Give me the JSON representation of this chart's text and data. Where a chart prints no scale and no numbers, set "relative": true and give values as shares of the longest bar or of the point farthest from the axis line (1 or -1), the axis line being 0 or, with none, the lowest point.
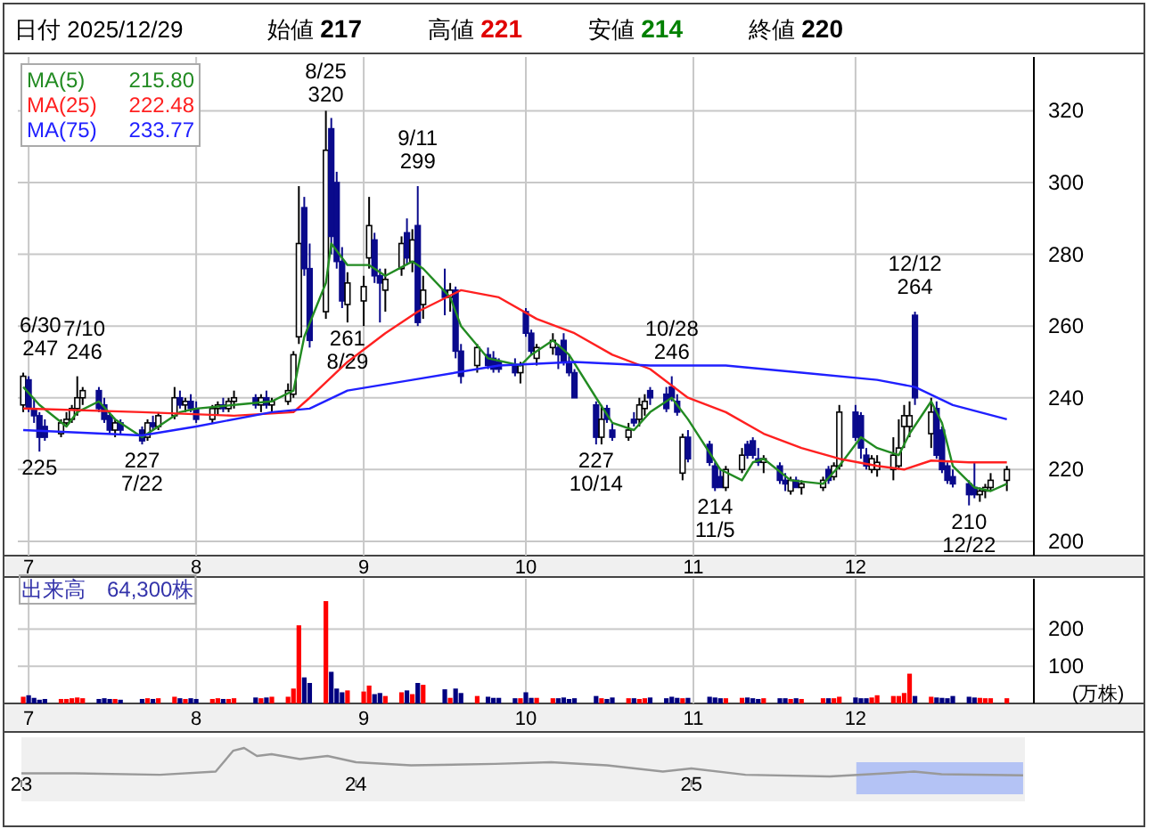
{
  "chart_data": [
    {
      "type": "candlestick",
      "x": [
        "2025-06-30",
        "2025-07-01",
        "2025-07-02",
        "2025-07-03",
        "2025-07-04",
        "2025-07-07",
        "2025-07-08",
        "2025-07-09",
        "2025-07-10",
        "2025-07-11",
        "2025-07-14",
        "2025-07-15",
        "2025-07-16",
        "2025-07-17",
        "2025-07-18",
        "2025-07-22",
        "2025-07-23",
        "2025-07-24",
        "2025-07-25",
        "2025-07-28",
        "2025-07-29",
        "2025-07-30",
        "2025-07-31",
        "2025-08-01",
        "2025-08-04",
        "2025-08-05",
        "2025-08-06",
        "2025-08-07",
        "2025-08-08",
        "2025-08-12",
        "2025-08-13",
        "2025-08-14",
        "2025-08-15",
        "2025-08-18",
        "2025-08-19",
        "2025-08-20",
        "2025-08-21",
        "2025-08-22",
        "2025-08-25",
        "2025-08-26",
        "2025-08-27",
        "2025-08-28",
        "2025-08-29",
        "2025-09-01",
        "2025-09-02",
        "2025-09-03",
        "2025-09-04",
        "2025-09-05",
        "2025-09-08",
        "2025-09-09",
        "2025-09-10",
        "2025-09-11",
        "2025-09-12",
        "2025-09-16",
        "2025-09-17",
        "2025-09-18",
        "2025-09-19",
        "2025-09-22",
        "2025-09-24",
        "2025-09-25",
        "2025-09-26",
        "2025-09-29",
        "2025-09-30",
        "2025-10-01",
        "2025-10-02",
        "2025-10-03",
        "2025-10-06",
        "2025-10-07",
        "2025-10-08",
        "2025-10-09",
        "2025-10-10",
        "2025-10-14",
        "2025-10-15",
        "2025-10-16",
        "2025-10-17",
        "2025-10-20",
        "2025-10-21",
        "2025-10-22",
        "2025-10-23",
        "2025-10-24",
        "2025-10-27",
        "2025-10-28",
        "2025-10-29",
        "2025-10-30",
        "2025-10-31",
        "2025-11-04",
        "2025-11-05",
        "2025-11-06",
        "2025-11-07",
        "2025-11-10",
        "2025-11-11",
        "2025-11-12",
        "2025-11-13",
        "2025-11-14",
        "2025-11-17",
        "2025-11-18",
        "2025-11-19",
        "2025-11-20",
        "2025-11-21",
        "2025-11-25",
        "2025-11-26",
        "2025-11-27",
        "2025-11-28",
        "2025-12-01",
        "2025-12-02",
        "2025-12-03",
        "2025-12-04",
        "2025-12-05",
        "2025-12-08",
        "2025-12-09",
        "2025-12-10",
        "2025-12-11",
        "2025-12-12",
        "2025-12-15",
        "2025-12-16",
        "2025-12-17",
        "2025-12-18",
        "2025-12-19",
        "2025-12-22",
        "2025-12-23",
        "2025-12-24",
        "2025-12-25",
        "2025-12-26",
        "2025-12-29"
      ],
      "ohlc": [
        [
          238,
          247,
          236,
          246
        ],
        [
          245,
          246,
          236,
          237
        ],
        [
          237,
          240,
          233,
          235
        ],
        [
          235,
          236,
          225,
          229
        ],
        [
          232,
          234,
          228,
          229
        ],
        [
          230,
          234,
          229,
          233
        ],
        [
          233,
          236,
          232,
          234
        ],
        [
          234,
          238,
          233,
          237
        ],
        [
          237,
          246,
          235,
          240
        ],
        [
          240,
          243,
          238,
          242
        ],
        [
          242,
          243,
          236,
          237
        ],
        [
          238,
          240,
          233,
          234
        ],
        [
          235,
          236,
          230,
          231
        ],
        [
          231,
          234,
          229,
          233
        ],
        [
          233,
          234,
          230,
          231
        ],
        [
          231,
          232,
          227,
          228
        ],
        [
          229,
          234,
          228,
          233
        ],
        [
          233,
          235,
          231,
          232
        ],
        [
          232,
          236,
          231,
          235
        ],
        [
          235,
          243,
          234,
          240
        ],
        [
          240,
          242,
          237,
          238
        ],
        [
          238,
          240,
          236,
          239
        ],
        [
          239,
          241,
          236,
          237
        ],
        [
          237,
          239,
          233,
          234
        ],
        [
          234,
          238,
          233,
          237
        ],
        [
          237,
          239,
          235,
          238
        ],
        [
          238,
          240,
          236,
          237
        ],
        [
          237,
          240,
          236,
          239
        ],
        [
          239,
          242,
          237,
          240
        ],
        [
          240,
          241,
          237,
          238
        ],
        [
          238,
          241,
          236,
          240
        ],
        [
          240,
          242,
          237,
          238
        ],
        [
          238,
          240,
          236,
          239
        ],
        [
          239,
          244,
          238,
          242
        ],
        [
          241,
          253,
          240,
          252
        ],
        [
          257,
          299,
          255,
          283
        ],
        [
          293,
          296,
          274,
          276
        ],
        [
          276,
          283,
          254,
          256
        ],
        [
          264,
          320,
          262,
          309
        ],
        [
          315,
          318,
          280,
          285
        ],
        [
          300,
          303,
          276,
          278
        ],
        [
          278,
          282,
          265,
          267
        ],
        [
          266,
          275,
          261,
          272
        ],
        [
          267,
          274,
          260,
          271
        ],
        [
          279,
          296,
          276,
          288
        ],
        [
          284,
          286,
          272,
          274
        ],
        [
          274,
          276,
          261,
          272
        ],
        [
          270,
          276,
          264,
          273
        ],
        [
          276,
          285,
          274,
          283
        ],
        [
          286,
          290,
          277,
          279
        ],
        [
          278,
          287,
          275,
          284
        ],
        [
          288,
          299,
          260,
          261
        ],
        [
          266,
          274,
          262,
          270
        ],
        [
          270,
          276,
          263,
          268
        ],
        [
          268,
          272,
          264,
          270
        ],
        [
          270,
          271,
          251,
          253
        ],
        [
          253,
          255,
          244,
          246
        ],
        [
          249,
          255,
          247,
          254
        ],
        [
          252,
          254,
          248,
          249
        ],
        [
          251,
          253,
          247,
          248
        ],
        [
          250,
          251,
          247,
          248
        ],
        [
          249,
          251,
          246,
          247
        ],
        [
          247,
          250,
          244,
          249
        ],
        [
          264,
          265,
          257,
          258
        ],
        [
          258,
          259,
          252,
          253
        ],
        [
          251,
          255,
          249,
          254
        ],
        [
          254,
          258,
          252,
          256
        ],
        [
          254,
          255,
          248,
          252
        ],
        [
          256,
          258,
          249,
          250
        ],
        [
          250,
          252,
          246,
          247
        ],
        [
          247,
          248,
          240,
          240
        ],
        [
          238,
          239,
          227,
          229
        ],
        [
          229,
          238,
          227,
          234
        ],
        [
          237,
          238,
          233,
          234
        ],
        [
          231,
          233,
          228,
          229
        ],
        [
          229,
          233,
          228,
          231
        ],
        [
          234,
          236,
          232,
          233
        ],
        [
          234,
          240,
          232,
          238
        ],
        [
          237,
          241,
          235,
          239
        ],
        [
          242,
          243,
          238,
          240
        ],
        [
          241,
          243,
          236,
          237
        ],
        [
          243,
          246,
          239,
          240
        ],
        [
          239,
          241,
          235,
          236
        ],
        [
          219,
          230,
          217,
          229
        ],
        [
          229,
          231,
          222,
          223
        ],
        [
          227,
          228,
          221,
          222
        ],
        [
          221,
          222,
          214,
          215
        ],
        [
          218,
          220,
          215,
          215
        ],
        [
          215,
          221,
          214,
          220
        ],
        [
          220,
          226,
          219,
          224
        ],
        [
          227,
          228,
          223,
          224
        ],
        [
          228,
          229,
          223,
          224
        ],
        [
          223,
          226,
          221,
          222
        ],
        [
          222,
          224,
          219,
          223
        ],
        [
          221,
          222,
          216,
          217
        ],
        [
          217,
          219,
          214,
          216
        ],
        [
          214,
          218,
          213,
          217
        ],
        [
          217,
          218,
          215,
          215
        ],
        [
          215,
          217,
          213,
          216
        ],
        [
          215,
          218,
          214,
          217
        ],
        [
          220,
          221,
          216,
          217
        ],
        [
          218,
          222,
          217,
          221
        ],
        [
          221,
          238,
          220,
          236
        ],
        [
          236,
          238,
          228,
          229
        ],
        [
          235,
          236,
          223,
          226
        ],
        [
          224,
          226,
          220,
          221
        ],
        [
          220,
          224,
          219,
          223
        ],
        [
          220,
          224,
          218,
          222
        ],
        [
          220,
          229,
          217,
          224
        ],
        [
          221,
          234,
          220,
          226
        ],
        [
          232,
          238,
          226,
          235
        ],
        [
          232,
          239,
          229,
          235
        ],
        [
          263,
          264,
          238,
          240
        ],
        [
          230,
          240,
          226,
          236
        ],
        [
          237,
          239,
          223,
          224
        ],
        [
          231,
          232,
          219,
          220
        ],
        [
          221,
          222,
          216,
          217
        ],
        [
          218,
          220,
          215,
          216
        ],
        [
          216,
          217,
          210,
          213
        ],
        [
          215,
          222,
          212,
          213
        ],
        [
          213,
          215,
          211,
          214
        ],
        [
          214,
          216,
          212,
          215
        ],
        [
          215,
          219,
          214,
          217
        ],
        [
          217,
          221,
          214,
          220
        ]
      ],
      "series": [
        {
          "name": "MA(5)",
          "type": "line",
          "color": "#228b22",
          "x": [
            "2025-06-30",
            "2025-07-03",
            "2025-07-08",
            "2025-07-10",
            "2025-07-14",
            "2025-07-17",
            "2025-07-22",
            "2025-07-25",
            "2025-07-29",
            "2025-08-01",
            "2025-08-08",
            "2025-08-15",
            "2025-08-19",
            "2025-08-21",
            "2025-08-25",
            "2025-08-26",
            "2025-08-29",
            "2025-09-02",
            "2025-09-05",
            "2025-09-10",
            "2025-09-12",
            "2025-09-17",
            "2025-09-19",
            "2025-09-24",
            "2025-09-30",
            "2025-10-02",
            "2025-10-06",
            "2025-10-09",
            "2025-10-14",
            "2025-10-17",
            "2025-10-21",
            "2025-10-24",
            "2025-10-28",
            "2025-10-31",
            "2025-11-06",
            "2025-11-10",
            "2025-11-12",
            "2025-11-14",
            "2025-11-19",
            "2025-11-25",
            "2025-11-28",
            "2025-12-02",
            "2025-12-05",
            "2025-12-09",
            "2025-12-11",
            "2025-12-15",
            "2025-12-17",
            "2025-12-19",
            "2025-12-23",
            "2025-12-26",
            "2025-12-29"
          ],
          "values": [
            243,
            238,
            232,
            236,
            239,
            234,
            229,
            232,
            236,
            237,
            238,
            239,
            242,
            257,
            272,
            283,
            277,
            277,
            274,
            278,
            276,
            268,
            260,
            251,
            249,
            252,
            256,
            252,
            240,
            233,
            231,
            236,
            240,
            234,
            220,
            217,
            222,
            223,
            217,
            216,
            221,
            229,
            226,
            224,
            230,
            239,
            233,
            221,
            215,
            214,
            216
          ]
        },
        {
          "name": "MA(25)",
          "type": "line",
          "color": "#ff2020",
          "x": [
            "2025-06-30",
            "2025-07-22",
            "2025-08-08",
            "2025-08-19",
            "2025-08-22",
            "2025-08-29",
            "2025-09-05",
            "2025-09-11",
            "2025-09-19",
            "2025-09-26",
            "2025-10-03",
            "2025-10-10",
            "2025-10-17",
            "2025-10-24",
            "2025-10-31",
            "2025-11-07",
            "2025-11-14",
            "2025-11-21",
            "2025-11-28",
            "2025-12-05",
            "2025-12-10",
            "2025-12-15",
            "2025-12-22",
            "2025-12-29"
          ],
          "values": [
            237,
            236,
            235,
            236,
            240,
            250,
            258,
            264,
            270,
            268,
            262,
            258,
            252,
            248,
            240,
            236,
            230,
            226,
            223,
            221,
            220,
            222.5,
            222,
            222
          ]
        },
        {
          "name": "MA(75)",
          "type": "line",
          "color": "#2020ff",
          "x": [
            "2025-06-30",
            "2025-07-22",
            "2025-08-01",
            "2025-08-15",
            "2025-08-22",
            "2025-08-29",
            "2025-09-10",
            "2025-09-26",
            "2025-10-10",
            "2025-10-24",
            "2025-11-07",
            "2025-11-21",
            "2025-12-05",
            "2025-12-12",
            "2025-12-19",
            "2025-12-29"
          ],
          "values": [
            231,
            229.5,
            232,
            236,
            237,
            242,
            245,
            249,
            250,
            249,
            249,
            247,
            245,
            243,
            238,
            234
          ]
        }
      ],
      "ylim": [
        196,
        335
      ],
      "yticks": [
        200,
        220,
        240,
        260,
        280,
        300,
        320
      ],
      "xlim": [
        "2025-06-29",
        "2026-01-03"
      ],
      "xticks": [
        {
          "value": "2025-07-01",
          "label": "7"
        },
        {
          "value": "2025-08-01",
          "label": "8"
        },
        {
          "value": "2025-09-01",
          "label": "9"
        },
        {
          "value": "2025-10-01",
          "label": "10"
        },
        {
          "value": "2025-11-01",
          "label": "11"
        },
        {
          "value": "2025-12-01",
          "label": "12"
        }
      ],
      "grid": true,
      "legend": "top left",
      "annotations": [
        "日付 2025/12/29",
        "始値 217",
        "高値 221",
        "安値 214",
        "終値 220",
        "215.80",
        "222.48",
        "233.77",
        {
          "text": "6/30\n247",
          "x": "2025-06-30",
          "y": 247
        },
        {
          "text": "7/10\n246",
          "x": "2025-07-10",
          "y": 246
        },
        {
          "text": "225",
          "x": "2025-07-03",
          "y": 225
        },
        {
          "text": "227\n7/22",
          "x": "2025-07-22",
          "y": 227
        },
        {
          "text": "8/25\n320",
          "x": "2025-08-25",
          "y": 320
        },
        {
          "text": "261\n8/29",
          "x": "2025-08-29",
          "y": 261
        },
        {
          "text": "9/11\n299",
          "x": "2025-09-11",
          "y": 299
        },
        {
          "text": "227\n10/14",
          "x": "2025-10-14",
          "y": 227
        },
        {
          "text": "10/28\n246",
          "x": "2025-10-28",
          "y": 246
        },
        {
          "text": "214\n11/5",
          "x": "2025-11-05",
          "y": 214
        },
        {
          "text": "12/12\n264",
          "x": "2025-12-12",
          "y": 264
        },
        {
          "text": "210\n12/22",
          "x": "2025-12-22",
          "y": 210
        }
      ]
    },
    {
      "type": "bar",
      "title": "出来高　64,300株",
      "ylabel": "(万株)",
      "x": [
        "2025-06-30",
        "2025-07-01",
        "2025-07-02",
        "2025-07-03",
        "2025-07-04",
        "2025-07-07",
        "2025-07-08",
        "2025-07-09",
        "2025-07-10",
        "2025-07-11",
        "2025-07-14",
        "2025-07-15",
        "2025-07-16",
        "2025-07-17",
        "2025-07-18",
        "2025-07-22",
        "2025-07-23",
        "2025-07-24",
        "2025-07-25",
        "2025-07-28",
        "2025-07-29",
        "2025-07-30",
        "2025-07-31",
        "2025-08-01",
        "2025-08-04",
        "2025-08-05",
        "2025-08-06",
        "2025-08-07",
        "2025-08-08",
        "2025-08-12",
        "2025-08-13",
        "2025-08-14",
        "2025-08-15",
        "2025-08-18",
        "2025-08-19",
        "2025-08-20",
        "2025-08-21",
        "2025-08-22",
        "2025-08-25",
        "2025-08-26",
        "2025-08-27",
        "2025-08-28",
        "2025-08-29",
        "2025-09-01",
        "2025-09-02",
        "2025-09-03",
        "2025-09-04",
        "2025-09-05",
        "2025-09-08",
        "2025-09-09",
        "2025-09-10",
        "2025-09-11",
        "2025-09-12",
        "2025-09-16",
        "2025-09-17",
        "2025-09-18",
        "2025-09-19",
        "2025-09-22",
        "2025-09-24",
        "2025-09-25",
        "2025-09-26",
        "2025-09-29",
        "2025-09-30",
        "2025-10-01",
        "2025-10-02",
        "2025-10-03",
        "2025-10-06",
        "2025-10-07",
        "2025-10-08",
        "2025-10-09",
        "2025-10-10",
        "2025-10-14",
        "2025-10-15",
        "2025-10-16",
        "2025-10-17",
        "2025-10-20",
        "2025-10-21",
        "2025-10-22",
        "2025-10-23",
        "2025-10-24",
        "2025-10-27",
        "2025-10-28",
        "2025-10-29",
        "2025-10-30",
        "2025-10-31",
        "2025-11-04",
        "2025-11-05",
        "2025-11-06",
        "2025-11-07",
        "2025-11-10",
        "2025-11-11",
        "2025-11-12",
        "2025-11-13",
        "2025-11-14",
        "2025-11-17",
        "2025-11-18",
        "2025-11-19",
        "2025-11-20",
        "2025-11-21",
        "2025-11-25",
        "2025-11-26",
        "2025-11-27",
        "2025-11-28",
        "2025-12-01",
        "2025-12-02",
        "2025-12-03",
        "2025-12-04",
        "2025-12-05",
        "2025-12-08",
        "2025-12-09",
        "2025-12-10",
        "2025-12-11",
        "2025-12-12",
        "2025-12-15",
        "2025-12-16",
        "2025-12-17",
        "2025-12-18",
        "2025-12-19",
        "2025-12-22",
        "2025-12-23",
        "2025-12-24",
        "2025-12-25",
        "2025-12-26",
        "2025-12-29"
      ],
      "values": [
        18,
        22,
        15,
        10,
        12,
        12,
        12,
        14,
        16,
        14,
        12,
        14,
        12,
        12,
        10,
        12,
        14,
        12,
        14,
        18,
        14,
        12,
        14,
        12,
        12,
        14,
        12,
        12,
        14,
        16,
        14,
        16,
        18,
        18,
        40,
        210,
        70,
        55,
        275,
        85,
        40,
        30,
        35,
        32,
        48,
        25,
        28,
        20,
        30,
        35,
        25,
        55,
        50,
        38,
        15,
        40,
        28,
        20,
        18,
        15,
        15,
        14,
        14,
        30,
        15,
        15,
        14,
        14,
        16,
        12,
        14,
        20,
        14,
        12,
        16,
        14,
        14,
        12,
        14,
        16,
        14,
        18,
        15,
        14,
        15,
        18,
        16,
        14,
        14,
        15,
        16,
        14,
        12,
        14,
        14,
        14,
        12,
        14,
        12,
        14,
        14,
        14,
        18,
        16,
        14,
        14,
        16,
        22,
        20,
        20,
        28,
        80,
        20,
        18,
        16,
        15,
        14,
        20,
        18,
        16,
        15,
        14,
        14,
        14
      ],
      "colors": [
        "#ff0000",
        "#000080",
        "#000080",
        "#000080",
        "#000080",
        "#ff0000",
        "#ff0000",
        "#ff0000",
        "#ff0000",
        "#ff0000",
        "#000080",
        "#000080",
        "#000080",
        "#ff0000",
        "#000080",
        "#000080",
        "#ff0000",
        "#000080",
        "#ff0000",
        "#ff0000",
        "#000080",
        "#ff0000",
        "#000080",
        "#000080",
        "#ff0000",
        "#ff0000",
        "#000080",
        "#ff0000",
        "#ff0000",
        "#000080",
        "#ff0000",
        "#000080",
        "#ff0000",
        "#ff0000",
        "#ff0000",
        "#ff0000",
        "#000080",
        "#000080",
        "#ff0000",
        "#000080",
        "#000080",
        "#000080",
        "#ff0000",
        "#ff0000",
        "#ff0000",
        "#000080",
        "#000080",
        "#ff0000",
        "#ff0000",
        "#000080",
        "#ff0000",
        "#000080",
        "#ff0000",
        "#000080",
        "#ff0000",
        "#000080",
        "#000080",
        "#ff0000",
        "#000080",
        "#000080",
        "#000080",
        "#000080",
        "#ff0000",
        "#000080",
        "#000080",
        "#ff0000",
        "#ff0000",
        "#000080",
        "#000080",
        "#000080",
        "#000080",
        "#000080",
        "#ff0000",
        "#000080",
        "#000080",
        "#ff0000",
        "#000080",
        "#ff0000",
        "#ff0000",
        "#000080",
        "#000080",
        "#000080",
        "#000080",
        "#ff0000",
        "#000080",
        "#000080",
        "#000080",
        "#000080",
        "#ff0000",
        "#ff0000",
        "#000080",
        "#000080",
        "#000080",
        "#ff0000",
        "#000080",
        "#000080",
        "#ff0000",
        "#000080",
        "#ff0000",
        "#ff0000",
        "#000080",
        "#ff0000",
        "#ff0000",
        "#000080",
        "#000080",
        "#000080",
        "#ff0000",
        "#ff0000",
        "#ff0000",
        "#ff0000",
        "#ff0000",
        "#ff0000",
        "#000080",
        "#ff0000",
        "#000080",
        "#000080",
        "#000080",
        "#000080",
        "#000080",
        "#000080",
        "#ff0000",
        "#ff0000",
        "#ff0000",
        "#ff0000"
      ],
      "ylim": [
        0,
        335
      ],
      "yticks": [
        100,
        200
      ],
      "xlim": [
        "2025-06-29",
        "2026-01-03"
      ],
      "xticks": [
        {
          "value": "2025-07-01",
          "label": "7"
        },
        {
          "value": "2025-08-01",
          "label": "8"
        },
        {
          "value": "2025-09-01",
          "label": "9"
        },
        {
          "value": "2025-10-01",
          "label": "10"
        },
        {
          "value": "2025-11-01",
          "label": "11"
        },
        {
          "value": "2025-12-01",
          "label": "12"
        }
      ],
      "grid": true
    },
    {
      "type": "line",
      "relative": true,
      "color": "#999999",
      "x": [
        "2023-01-01",
        "2023-03-01",
        "2023-06-01",
        "2023-08-01",
        "2023-08-20",
        "2023-09-01",
        "2023-09-15",
        "2023-10-01",
        "2023-11-01",
        "2023-12-01",
        "2024-01-01",
        "2024-03-01",
        "2024-06-01",
        "2024-08-01",
        "2024-10-01",
        "2024-12-01",
        "2025-01-01",
        "2025-03-01",
        "2025-06-01",
        "2025-08-01",
        "2025-09-01",
        "2025-10-01",
        "2025-12-29"
      ],
      "values": [
        0.11,
        0.11,
        0.06,
        0.17,
        0.9,
        1,
        0.72,
        0.78,
        0.61,
        0.72,
        0.5,
        0.39,
        0.44,
        0.5,
        0.39,
        0.17,
        0.28,
        0.06,
        0,
        0.11,
        0.17,
        0.08,
        0.04
      ],
      "xlim": [
        "2023-01-01",
        "2025-12-31"
      ],
      "xticks": [
        {
          "value": "2023-01-01",
          "label": "23"
        },
        {
          "value": "2024-01-01",
          "label": "24"
        },
        {
          "value": "2025-01-01",
          "label": "25"
        }
      ],
      "bands": [
        {
          "axis": "x",
          "from": "2025-06-30",
          "to": "2025-12-29",
          "color": "#b4c3f5"
        }
      ]
    }
  ]
}
